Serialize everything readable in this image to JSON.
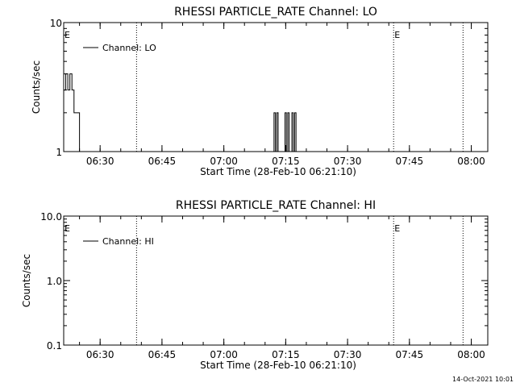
{
  "footer_date": "14-Oct-2021 10:01",
  "chart_data": [
    {
      "type": "line",
      "title": "RHESSI PARTICLE_RATE Channel: LO",
      "xlabel": "Start Time (28-Feb-10 06:21:10)",
      "ylabel": "Counts/sec",
      "y_scale": "log",
      "ylim": [
        1,
        10
      ],
      "y_ticks": [
        {
          "value": 1,
          "label": "1"
        },
        {
          "value": 10,
          "label": "10"
        }
      ],
      "xlim": [
        "06:21:10",
        "08:04:00"
      ],
      "x_ticks": [
        "06:30",
        "06:45",
        "07:00",
        "07:15",
        "07:30",
        "07:45",
        "08:00"
      ],
      "grid": false,
      "legend": {
        "position": "top-left",
        "entries": [
          "Channel: LO"
        ]
      },
      "markers": [
        {
          "label": "E",
          "x": "06:21:10",
          "line": false
        },
        {
          "label": "",
          "x": "06:38:50",
          "line": true
        },
        {
          "label": "E",
          "x": "07:41:10",
          "line": true
        },
        {
          "label": "",
          "x": "07:58:00",
          "line": true
        }
      ],
      "series": [
        {
          "name": "Channel: LO",
          "points": [
            [
              "06:21:10",
              3
            ],
            [
              "06:21:40",
              4
            ],
            [
              "06:22:10",
              3
            ],
            [
              "06:22:40",
              4
            ],
            [
              "06:23:10",
              3
            ],
            [
              "06:23:40",
              2
            ],
            [
              "06:24:10",
              2
            ],
            [
              "06:24:40",
              2
            ],
            [
              "06:25:00",
              1
            ],
            [
              "07:11:50",
              1
            ],
            [
              "07:12:10",
              2
            ],
            [
              "07:12:30",
              1
            ],
            [
              "07:12:50",
              2
            ],
            [
              "07:13:10",
              1
            ],
            [
              "07:14:30",
              1
            ],
            [
              "07:14:50",
              2
            ],
            [
              "07:15:10",
              1
            ],
            [
              "07:15:30",
              2
            ],
            [
              "07:15:50",
              1
            ],
            [
              "07:16:10",
              1
            ],
            [
              "07:16:30",
              2
            ],
            [
              "07:16:50",
              1
            ],
            [
              "07:17:10",
              2
            ],
            [
              "07:17:30",
              1
            ]
          ]
        }
      ]
    },
    {
      "type": "line",
      "title": "RHESSI PARTICLE_RATE Channel: HI",
      "xlabel": "Start Time (28-Feb-10 06:21:10)",
      "ylabel": "Counts/sec",
      "y_scale": "log",
      "ylim": [
        0.1,
        10
      ],
      "y_ticks": [
        {
          "value": 0.1,
          "label": "0.1"
        },
        {
          "value": 1,
          "label": "1.0"
        },
        {
          "value": 10,
          "label": "10.0"
        }
      ],
      "xlim": [
        "06:21:10",
        "08:04:00"
      ],
      "x_ticks": [
        "06:30",
        "06:45",
        "07:00",
        "07:15",
        "07:30",
        "07:45",
        "08:00"
      ],
      "grid": false,
      "legend": {
        "position": "top-left",
        "entries": [
          "Channel: HI"
        ]
      },
      "markers": [
        {
          "label": "E",
          "x": "06:21:10",
          "line": false
        },
        {
          "label": "",
          "x": "06:38:50",
          "line": true
        },
        {
          "label": "E",
          "x": "07:41:10",
          "line": true
        },
        {
          "label": "",
          "x": "07:58:00",
          "line": true
        }
      ],
      "series": [
        {
          "name": "Channel: HI",
          "points": []
        }
      ]
    }
  ]
}
